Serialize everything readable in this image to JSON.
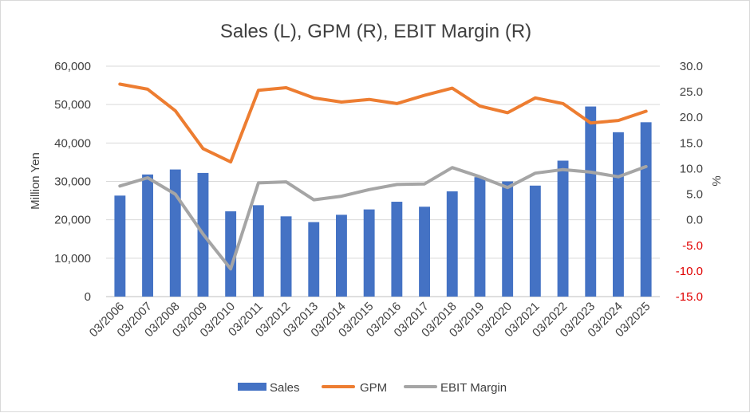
{
  "chart_data": {
    "type": "bar+line",
    "title": "Sales (L), GPM (R), EBIT Margin (R)",
    "ylabel_left": "Million Yen",
    "ylabel_right": "%",
    "categories": [
      "03/2006",
      "03/2007",
      "03/2008",
      "03/2009",
      "03/2010",
      "03/2011",
      "03/2012",
      "03/2013",
      "03/2014",
      "03/2015",
      "03/2016",
      "03/2017",
      "03/2018",
      "03/2019",
      "03/2020",
      "03/2021",
      "03/2022",
      "03/2023",
      "03/2024",
      "03/2025"
    ],
    "ylim_left": [
      0,
      60000
    ],
    "yticks_left": [
      "0",
      "10,000",
      "20,000",
      "30,000",
      "40,000",
      "50,000",
      "60,000"
    ],
    "ylim_right": [
      -15,
      30
    ],
    "yticks_right": [
      "-15.0",
      "-10.0",
      "-5.0",
      "0.0",
      "5.0",
      "10.0",
      "15.0",
      "20.0",
      "25.0",
      "30.0"
    ],
    "grid": true,
    "legend_position": "bottom",
    "series": [
      {
        "name": "Sales",
        "type": "bar",
        "axis": "left",
        "color": "#4472c4",
        "values": [
          26300,
          31800,
          33100,
          32200,
          22200,
          23800,
          20900,
          19400,
          21300,
          22700,
          24700,
          23400,
          27400,
          31100,
          30000,
          28900,
          35400,
          49500,
          42800,
          45400
        ]
      },
      {
        "name": "GPM",
        "type": "line",
        "axis": "right",
        "color": "#ed7d31",
        "values": [
          26.5,
          25.5,
          21.3,
          13.9,
          11.3,
          25.3,
          25.8,
          23.8,
          23.0,
          23.5,
          22.7,
          24.3,
          25.7,
          22.2,
          20.9,
          23.8,
          22.7,
          18.9,
          19.4,
          21.2
        ]
      },
      {
        "name": "EBIT Margin",
        "type": "line",
        "axis": "right",
        "color": "#a5a5a5",
        "values": [
          6.6,
          8.2,
          5.0,
          -2.8,
          -9.6,
          7.2,
          7.4,
          3.9,
          4.6,
          5.9,
          6.9,
          7.0,
          10.2,
          8.4,
          6.3,
          9.1,
          9.8,
          9.3,
          8.4,
          10.4
        ]
      }
    ]
  },
  "colors": {
    "negative_tick": "#e00000"
  }
}
